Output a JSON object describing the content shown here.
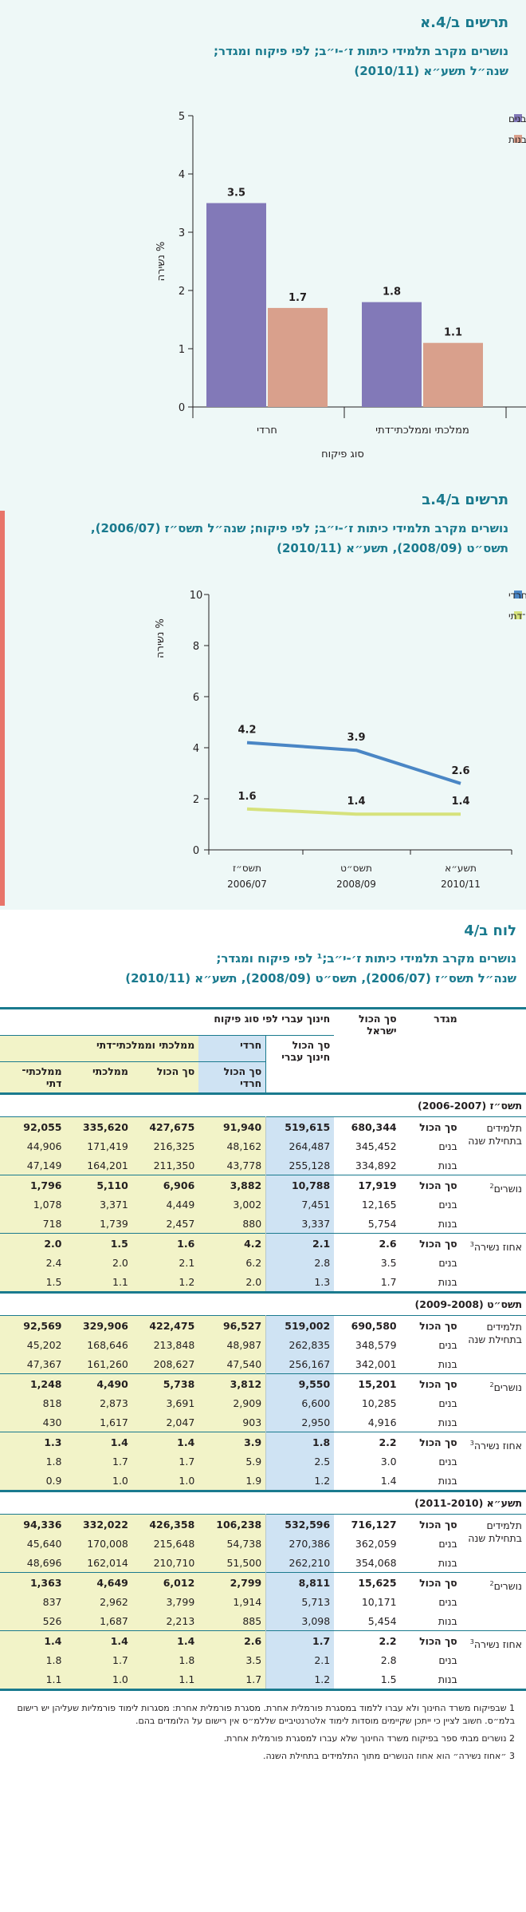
{
  "chart1": {
    "fig_label": "תרשים ב/4.א",
    "title_line1": "נושרים מקרב תלמידי כיתות ז׳-י״ב; לפי פיקוח ומגדר;",
    "title_line2": "שנה״ל תשע״א (2010/11)",
    "ylabel": "% נשירה",
    "xlabel": "סוג פיקוח",
    "legend": [
      "בנים",
      "בנות"
    ],
    "colors": {
      "boys": "#8279b8",
      "girls": "#d9a08c"
    },
    "chart_data": {
      "type": "bar",
      "categories": [
        "חרדי",
        "ממלכתי וממלכתי־דתי"
      ],
      "series": [
        {
          "name": "בנים",
          "values": [
            3.5,
            1.8
          ]
        },
        {
          "name": "בנות",
          "values": [
            1.7,
            1.1
          ]
        }
      ],
      "ylim": [
        0,
        5
      ],
      "yticks": [
        0,
        1,
        2,
        3,
        4,
        5
      ],
      "xlabel": "סוג פיקוח",
      "ylabel": "% נשירה",
      "legend_position": "top-right"
    }
  },
  "chart2": {
    "fig_label": "תרשים ב/4.ב",
    "title_line1": "נושרים מקרב תלמידי כיתות ז׳-י״ב; לפי פיקוח; שנה״ל תשס״ז (2006/07),",
    "title_line2": "תשס״ט (2008/09), תשע״א (2010/11)",
    "ylabel": "% נשירה",
    "legend": [
      "חרדי",
      "ממלכתי וממלכתי־דתי"
    ],
    "colors": {
      "haredi": "#4a86c5",
      "state": "#d6e27c"
    },
    "chart_data": {
      "type": "line",
      "categories": [
        [
          "תשס״ז",
          "2006/07"
        ],
        [
          "תשס״ט",
          "2008/09"
        ],
        [
          "תשע״א",
          "2010/11"
        ]
      ],
      "series": [
        {
          "name": "חרדי",
          "values": [
            4.2,
            3.9,
            2.6
          ]
        },
        {
          "name": "ממלכתי וממלכתי־דתי",
          "values": [
            1.6,
            1.4,
            1.4
          ]
        }
      ],
      "ylim": [
        0,
        10
      ],
      "yticks": [
        0,
        2,
        4,
        6,
        8,
        10
      ],
      "ylabel": "% נשירה",
      "legend_position": "top-right"
    }
  },
  "table": {
    "label": "לוח ב/4",
    "title_line1": "נושרים מקרב תלמידי כיתות ז׳-י״ב;¹ לפי פיקוח ומגדר;",
    "title_line2": "שנה״ל תשס״ז (2006/07), תשס״ט (2008/09), תשע״א (2010/11)",
    "headers": {
      "gender": "מגדר",
      "total_israel": "סך הכול ישראל",
      "hebrew_ed": "חינוך עברי לפי סוג פיקוח",
      "total_hebrew": "סך הכול חינוך עברי",
      "haredi": "חרדי",
      "haredi_total": "סך הכול חרדי",
      "state_group": "ממלכתי וממלכתי־דתי",
      "state_total": "סך הכול",
      "state": "ממלכתי",
      "state_religious": "ממלכתי־ דתי"
    },
    "years": [
      {
        "title": "תשס״ז (2006-2007)",
        "groups": [
          {
            "label": "תלמידים בתחילת שנה",
            "sup": "",
            "rows": [
              {
                "gender": "סך הכול",
                "total": true,
                "values": [
                  "680,344",
                  "519,615",
                  "91,940",
                  "427,675",
                  "335,620",
                  "92,055"
                ]
              },
              {
                "gender": "בנים",
                "values": [
                  "345,452",
                  "264,487",
                  "48,162",
                  "216,325",
                  "171,419",
                  "44,906"
                ]
              },
              {
                "gender": "בנות",
                "values": [
                  "334,892",
                  "255,128",
                  "43,778",
                  "211,350",
                  "164,201",
                  "47,149"
                ]
              }
            ]
          },
          {
            "label": "נושרים",
            "sup": "2",
            "rows": [
              {
                "gender": "סך הכול",
                "total": true,
                "values": [
                  "17,919",
                  "10,788",
                  "3,882",
                  "6,906",
                  "5,110",
                  "1,796"
                ]
              },
              {
                "gender": "בנים",
                "values": [
                  "12,165",
                  "7,451",
                  "3,002",
                  "4,449",
                  "3,371",
                  "1,078"
                ]
              },
              {
                "gender": "בנות",
                "values": [
                  "5,754",
                  "3,337",
                  "880",
                  "2,457",
                  "1,739",
                  "718"
                ]
              }
            ]
          },
          {
            "label": "אחוז נשירה",
            "sup": "3",
            "rows": [
              {
                "gender": "סך הכול",
                "total": true,
                "values": [
                  "2.6",
                  "2.1",
                  "4.2",
                  "1.6",
                  "1.5",
                  "2.0"
                ]
              },
              {
                "gender": "בנים",
                "values": [
                  "3.5",
                  "2.8",
                  "6.2",
                  "2.1",
                  "2.0",
                  "2.4"
                ]
              },
              {
                "gender": "בנות",
                "values": [
                  "1.7",
                  "1.3",
                  "2.0",
                  "1.2",
                  "1.1",
                  "1.5"
                ]
              }
            ]
          }
        ]
      },
      {
        "title": "תשס״ט (2009-2008)",
        "groups": [
          {
            "label": "תלמידים בתחילת שנה",
            "sup": "",
            "rows": [
              {
                "gender": "סך הכול",
                "total": true,
                "values": [
                  "690,580",
                  "519,002",
                  "96,527",
                  "422,475",
                  "329,906",
                  "92,569"
                ]
              },
              {
                "gender": "בנים",
                "values": [
                  "348,579",
                  "262,835",
                  "48,987",
                  "213,848",
                  "168,646",
                  "45,202"
                ]
              },
              {
                "gender": "בנות",
                "values": [
                  "342,001",
                  "256,167",
                  "47,540",
                  "208,627",
                  "161,260",
                  "47,367"
                ]
              }
            ]
          },
          {
            "label": "נושרים",
            "sup": "2",
            "rows": [
              {
                "gender": "סך הכול",
                "total": true,
                "values": [
                  "15,201",
                  "9,550",
                  "3,812",
                  "5,738",
                  "4,490",
                  "1,248"
                ]
              },
              {
                "gender": "בנים",
                "values": [
                  "10,285",
                  "6,600",
                  "2,909",
                  "3,691",
                  "2,873",
                  "818"
                ]
              },
              {
                "gender": "בנות",
                "values": [
                  "4,916",
                  "2,950",
                  "903",
                  "2,047",
                  "1,617",
                  "430"
                ]
              }
            ]
          },
          {
            "label": "אחוז נשירה",
            "sup": "3",
            "rows": [
              {
                "gender": "סך הכול",
                "total": true,
                "values": [
                  "2.2",
                  "1.8",
                  "3.9",
                  "1.4",
                  "1.4",
                  "1.3"
                ]
              },
              {
                "gender": "בנים",
                "values": [
                  "3.0",
                  "2.5",
                  "5.9",
                  "1.7",
                  "1.7",
                  "1.8"
                ]
              },
              {
                "gender": "בנות",
                "values": [
                  "1.4",
                  "1.2",
                  "1.9",
                  "1.0",
                  "1.0",
                  "0.9"
                ]
              }
            ]
          }
        ]
      },
      {
        "title": "תשע״א (2011-2010)",
        "groups": [
          {
            "label": "תלמידים בתחילת שנה",
            "sup": "",
            "rows": [
              {
                "gender": "סך הכול",
                "total": true,
                "values": [
                  "716,127",
                  "532,596",
                  "106,238",
                  "426,358",
                  "332,022",
                  "94,336"
                ]
              },
              {
                "gender": "בנים",
                "values": [
                  "362,059",
                  "270,386",
                  "54,738",
                  "215,648",
                  "170,008",
                  "45,640"
                ]
              },
              {
                "gender": "בנות",
                "values": [
                  "354,068",
                  "262,210",
                  "51,500",
                  "210,710",
                  "162,014",
                  "48,696"
                ]
              }
            ]
          },
          {
            "label": "נושרים",
            "sup": "2",
            "rows": [
              {
                "gender": "סך הכול",
                "total": true,
                "values": [
                  "15,625",
                  "8,811",
                  "2,799",
                  "6,012",
                  "4,649",
                  "1,363"
                ]
              },
              {
                "gender": "בנים",
                "values": [
                  "10,171",
                  "5,713",
                  "1,914",
                  "3,799",
                  "2,962",
                  "837"
                ]
              },
              {
                "gender": "בנות",
                "values": [
                  "5,454",
                  "3,098",
                  "885",
                  "2,213",
                  "1,687",
                  "526"
                ]
              }
            ]
          },
          {
            "label": "אחוז נשירה",
            "sup": "3",
            "rows": [
              {
                "gender": "סך הכול",
                "total": true,
                "values": [
                  "2.2",
                  "1.7",
                  "2.6",
                  "1.4",
                  "1.4",
                  "1.4"
                ]
              },
              {
                "gender": "בנים",
                "values": [
                  "2.8",
                  "2.1",
                  "3.5",
                  "1.8",
                  "1.7",
                  "1.8"
                ]
              },
              {
                "gender": "בנות",
                "values": [
                  "1.5",
                  "1.2",
                  "1.7",
                  "1.1",
                  "1.0",
                  "1.1"
                ]
              }
            ]
          }
        ]
      }
    ],
    "footnotes": [
      "1 שבפיקוח משרד החינוך ולא עברו ללמוד במסגרת פורמלית אחרת. מסגרת פורמלית אחרת: מסגרות לימוד פורמליות שעליהן יש רישום בלמ״ס. חשוב לציין כי ייתכן שקיימים מוסדות לימוד אלטרנטיביים שללמ״ס אין רישום על הלומדים בהם.",
      "2 נושרים מבתי ספר בפיקוח משרד החינוך שלא עברו למסגרת פורמלית אחרת.",
      "3 ״אחוז נשירה״ הוא אחוז הנושרים מתוך התלמידים בתחילת השנה."
    ],
    "colors": {
      "teal": "#1a7a8e",
      "haredi_bg": "#cfe3f3",
      "state_bg": "#f2f3c8",
      "header_bg": "#ffffff"
    }
  }
}
